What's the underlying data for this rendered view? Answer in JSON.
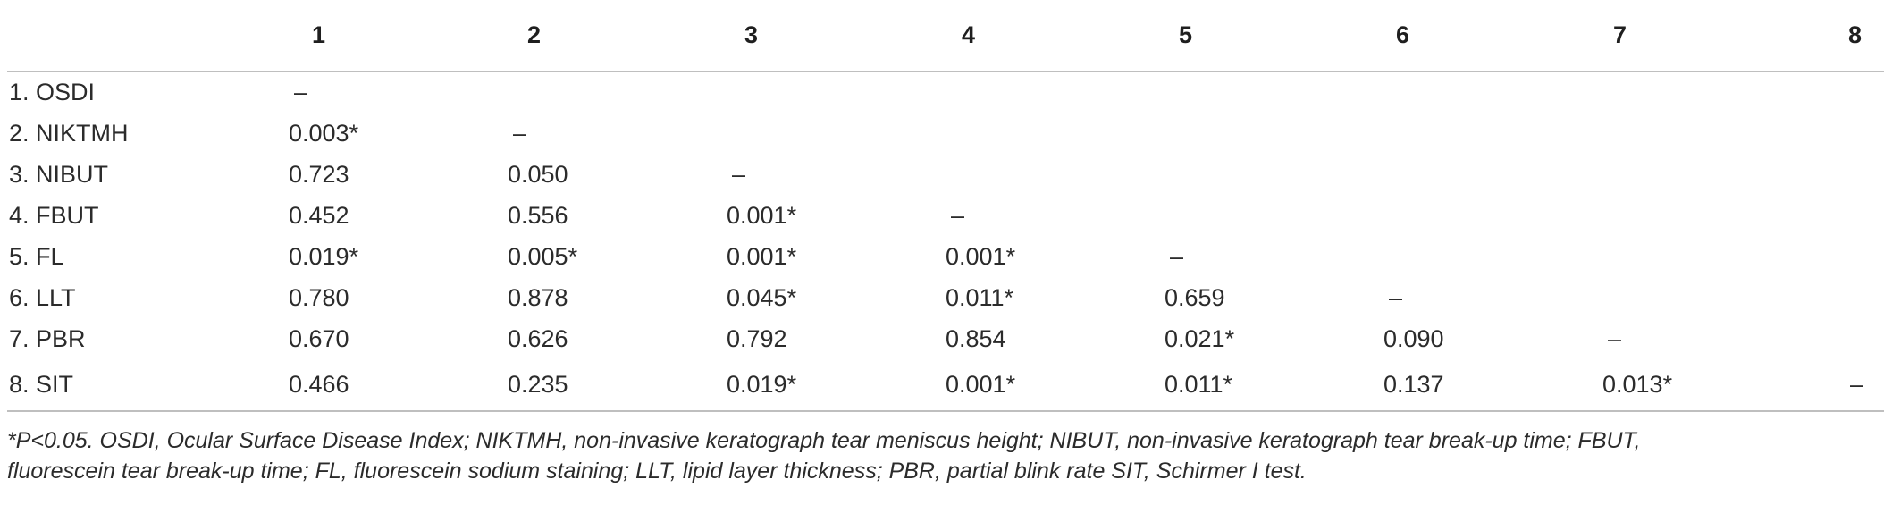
{
  "table": {
    "headers": [
      "",
      "1",
      "2",
      "3",
      "4",
      "5",
      "6",
      "7",
      "8"
    ],
    "rows": [
      {
        "label": "1. OSDI",
        "cells": [
          "–",
          "",
          "",
          "",
          "",
          "",
          "",
          ""
        ]
      },
      {
        "label": "2. NIKTMH",
        "cells": [
          "0.003*",
          "–",
          "",
          "",
          "",
          "",
          "",
          ""
        ]
      },
      {
        "label": "3. NIBUT",
        "cells": [
          "0.723",
          "0.050",
          "–",
          "",
          "",
          "",
          "",
          ""
        ]
      },
      {
        "label": "4. FBUT",
        "cells": [
          "0.452",
          "0.556",
          "0.001*",
          "–",
          "",
          "",
          "",
          ""
        ]
      },
      {
        "label": "5. FL",
        "cells": [
          "0.019*",
          "0.005*",
          "0.001*",
          "0.001*",
          "–",
          "",
          "",
          ""
        ]
      },
      {
        "label": "6. LLT",
        "cells": [
          "0.780",
          "0.878",
          "0.045*",
          "0.011*",
          "0.659",
          "–",
          "",
          ""
        ]
      },
      {
        "label": "7. PBR",
        "cells": [
          "0.670",
          "0.626",
          "0.792",
          "0.854",
          "0.021*",
          "0.090",
          "–",
          ""
        ]
      },
      {
        "label": "8. SIT",
        "cells": [
          "0.466",
          "0.235",
          "0.019*",
          "0.001*",
          "0.011*",
          "0.137",
          "0.013*",
          "–"
        ]
      }
    ]
  },
  "footnote": {
    "line1": "*P<0.05. OSDI, Ocular Surface Disease Index; NIKTMH, non-invasive keratograph tear meniscus height; NIBUT, non-invasive keratograph tear break-up time; FBUT,",
    "line2": "fluorescein tear break-up time; FL, fluorescein sodium staining; LLT, lipid layer thickness; PBR, partial blink rate SIT, Schirmer I test."
  }
}
